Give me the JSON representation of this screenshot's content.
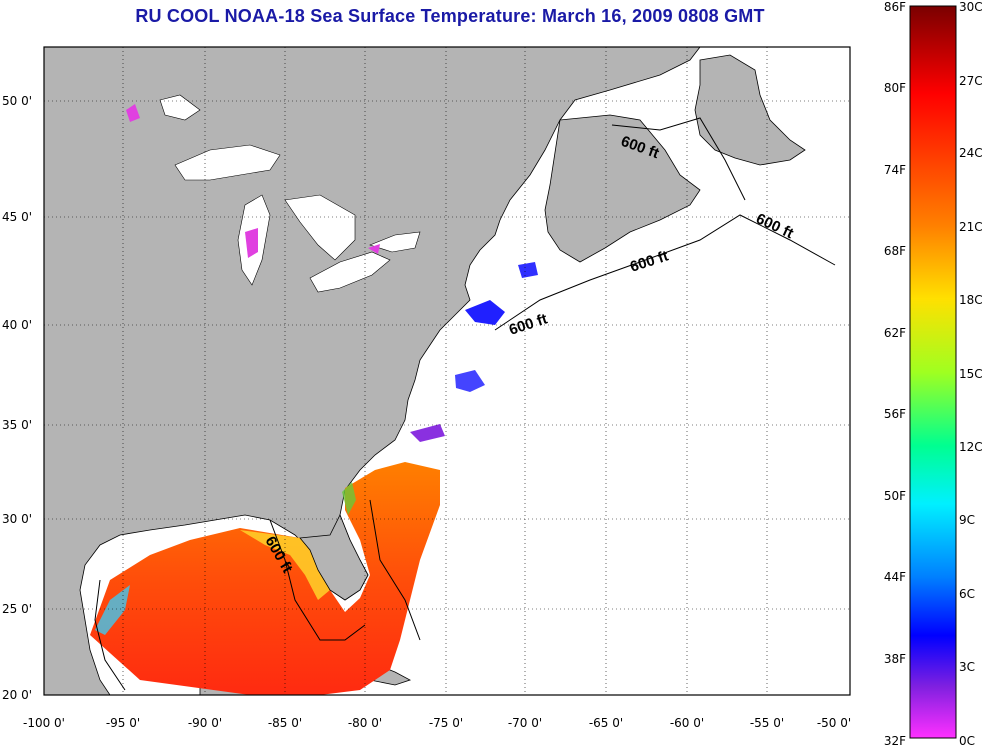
{
  "title": "RU COOL  NOAA-18  Sea Surface Temperature:  March 16, 2009 0808 GMT",
  "map": {
    "lon_labels": [
      "-100 0'",
      "-95 0'",
      "-90 0'",
      "-85 0'",
      "-80 0'",
      "-75 0'",
      "-70 0'",
      "-65 0'",
      "-60 0'",
      "-55 0'",
      "-50 0'"
    ],
    "lat_labels": [
      "50 0'",
      "45 0'",
      "40 0'",
      "35 0'",
      "30 0'",
      "25 0'",
      "20 0'"
    ],
    "depth_labels": [
      "600 ft",
      "600 ft",
      "600 ft",
      "600 ft",
      "600 ft"
    ],
    "colors": {
      "land": "#b4b4b4",
      "ocean": "#ffffff",
      "warm": "#ff5a0a",
      "cold": "#2020ff",
      "cold_pink": "#e040e0"
    }
  },
  "colorbar": {
    "fahrenheit": [
      "86F",
      "80F",
      "74F",
      "68F",
      "62F",
      "56F",
      "50F",
      "44F",
      "38F",
      "32F"
    ],
    "celsius": [
      "30C",
      "27C",
      "24C",
      "21C",
      "18C",
      "15C",
      "12C",
      "9C",
      "6C",
      "3C",
      "0C"
    ]
  }
}
